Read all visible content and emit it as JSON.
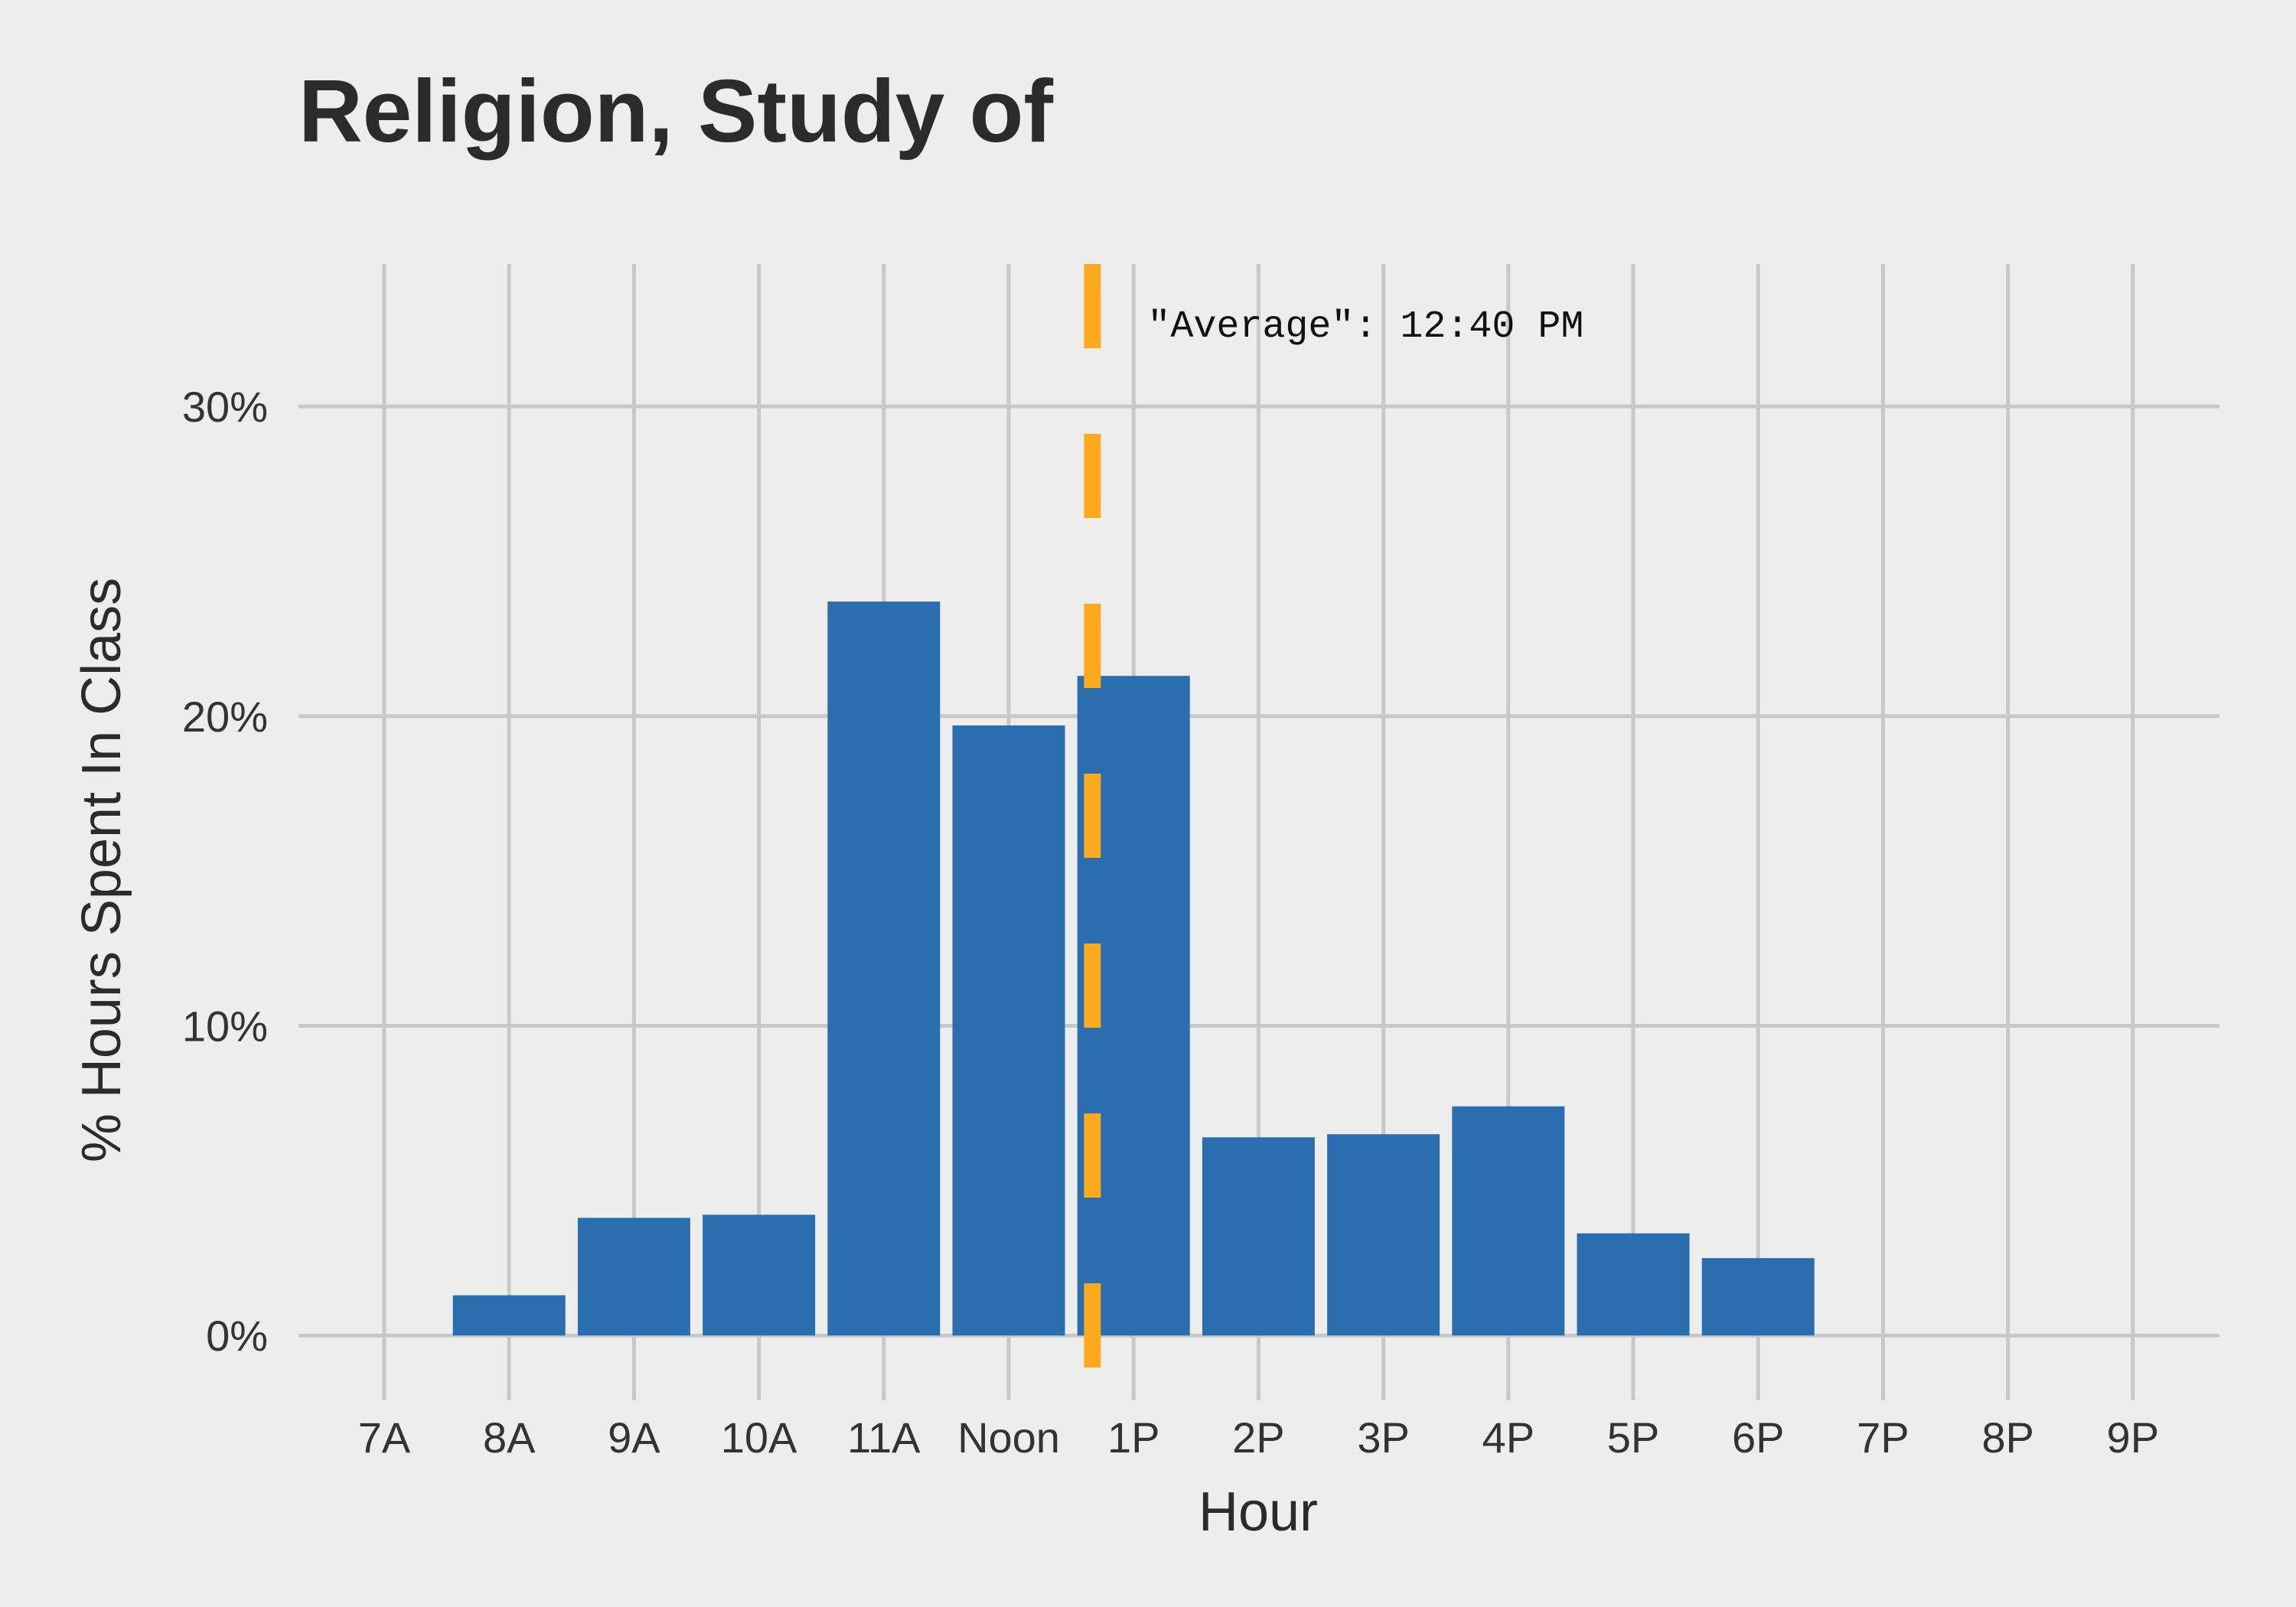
{
  "chart_data": {
    "type": "bar",
    "title": "Religion, Study of",
    "xlabel": "Hour",
    "ylabel": "% Hours Spent In Class",
    "categories": [
      "7A",
      "8A",
      "9A",
      "10A",
      "11A",
      "Noon",
      "1P",
      "2P",
      "3P",
      "4P",
      "5P",
      "6P",
      "7P",
      "8P",
      "9P"
    ],
    "values": [
      0,
      1.3,
      3.8,
      3.9,
      23.7,
      19.7,
      21.3,
      6.4,
      6.5,
      7.4,
      3.3,
      2.5,
      0,
      0,
      0
    ],
    "yticks": [
      0,
      10,
      20,
      30
    ],
    "ytick_labels": [
      "0%",
      "10%",
      "20%",
      "30%"
    ],
    "ylim": [
      -1.6,
      34.6
    ],
    "grid": true,
    "bar_color": "#2a6eb0",
    "average": {
      "value_hour": 12.67,
      "label": "\"Average\": 12:40 PM",
      "color": "#ffa91e"
    }
  }
}
